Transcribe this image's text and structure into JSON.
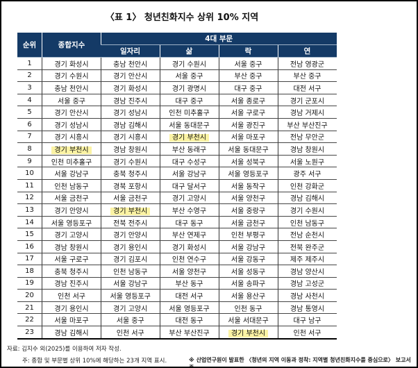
{
  "title": "〈표 1〉 청년친화지수 상위 10% 지역",
  "headers": {
    "rank": "순위",
    "composite": "종합지수",
    "group": "4대 부문",
    "sectors": [
      "일자리",
      "삶",
      "락",
      "연"
    ]
  },
  "rows": [
    [
      "1",
      "경기 화성시",
      "충남 천안시",
      "경기 수원시",
      "서울 중구",
      "전남 영광군"
    ],
    [
      "2",
      "경기 수원시",
      "경기 안산시",
      "서울 중구",
      "부산 중구",
      "부산 중구"
    ],
    [
      "3",
      "충남 천안시",
      "경기 화성시",
      "경기 광명시",
      "대구 중구",
      "대전 서구"
    ],
    [
      "4",
      "서울 중구",
      "경남 진주시",
      "대구 중구",
      "서울 종로구",
      "경기 군포시"
    ],
    [
      "5",
      "경기 안산시",
      "경기 성남시",
      "인천 미추홀구",
      "서울 구로구",
      "경남 거제시"
    ],
    [
      "6",
      "경기 성남시",
      "경남 김해시",
      "서울 동대문구",
      "서울 광진구",
      "부산 부산진구"
    ],
    [
      "7",
      "경기 시흥시",
      "경기 시흥시",
      "경기 부천시",
      "서울 마포구",
      "전남 무안군"
    ],
    [
      "8",
      "경기 부천시",
      "경남 창원시",
      "부산 동래구",
      "서울 동대문구",
      "경남 창원시"
    ],
    [
      "9",
      "인천 미추홀구",
      "경기 수원시",
      "대구 수성구",
      "서울 성북구",
      "서울 노원구"
    ],
    [
      "10",
      "서울 강남구",
      "충북 청주시",
      "서울 강남구",
      "서울 영등포구",
      "광주 서구"
    ],
    [
      "11",
      "인천 남동구",
      "경북 포항시",
      "대구 달서구",
      "서울 동작구",
      "인천 강화군"
    ],
    [
      "12",
      "서울 금천구",
      "서울 금천구",
      "경기 고양시",
      "서울 양천구",
      "경남 김해시"
    ],
    [
      "13",
      "경기 안양시",
      "경기 부천시",
      "부산 수영구",
      "서울 중랑구",
      "경기 수원시"
    ],
    [
      "14",
      "서울 영등포구",
      "전북 전주시",
      "대구 동구",
      "서울 금천구",
      "인천 남동구"
    ],
    [
      "15",
      "경기 고양시",
      "경기 안양시",
      "부산 연제구",
      "인천 부평구",
      "전남 순천시"
    ],
    [
      "16",
      "경남 창원시",
      "경기 용인시",
      "경기 화성시",
      "서울 강남구",
      "전북 완주군"
    ],
    [
      "17",
      "서울 구로구",
      "경기 김포시",
      "인천 연수구",
      "서울 강동구",
      "제주 제주시"
    ],
    [
      "18",
      "충북 청주시",
      "인천 남동구",
      "서울 양천구",
      "서울 성동구",
      "경남 양산시"
    ],
    [
      "19",
      "경남 진주시",
      "서울 강남구",
      "부산 동구",
      "서울 송파구",
      "경남 고성군"
    ],
    [
      "20",
      "인천 서구",
      "서울 영등포구",
      "대전 서구",
      "서울 용산구",
      "경남 사천시"
    ],
    [
      "21",
      "경기 용인시",
      "경기 고양시",
      "서울 영등포구",
      "인천 동구",
      "경남 통영시"
    ],
    [
      "22",
      "서울 마포구",
      "서울 중구",
      "대전 동구",
      "서울 서대문구",
      "대구 남구"
    ],
    [
      "23",
      "경남 김해시",
      "인천 서구",
      "부산 부산진구",
      "경기 부천시",
      "인천 서구"
    ]
  ],
  "highlight_value": "경기 부천시",
  "highlight_color": "#fbf3a4",
  "header_color": "#143a66",
  "footnotes": {
    "source": "자료: 김지수 외(2025)를 이용하여 저자 작성.",
    "note": "주: 종합 및 부문별 상위 10%에 해당하는 23개 지역 표시.",
    "credit": "※ 산업연구원이 발표한 〈청년의 지역 이동과 정착: 지역별 청년친화지수를 중심으로〉 보고서 중"
  }
}
